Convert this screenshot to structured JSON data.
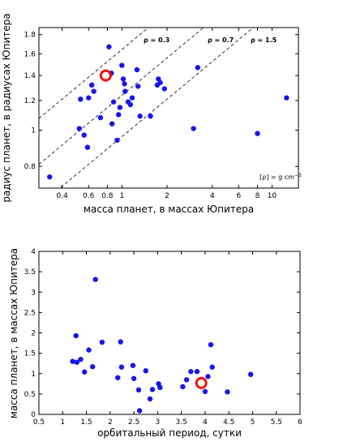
{
  "chart_data": [
    {
      "type": "scatter",
      "xscale": "log",
      "yscale": "log",
      "xlabel": "масса планет, в массах Юпитера",
      "ylabel": "радиус планет, в радиусах Юпитера",
      "xlim": [
        0.28,
        15
      ],
      "ylim": [
        0.7,
        1.88
      ],
      "xticks": [
        0.4,
        0.6,
        0.8,
        1,
        2,
        4,
        6,
        8,
        10
      ],
      "xtick_labels": [
        "0.4",
        "0.6",
        "0.8",
        "1",
        "2",
        "4",
        "6",
        "8",
        "10"
      ],
      "yticks": [
        0.8,
        1,
        1.2,
        1.4,
        1.6,
        1.8
      ],
      "ytick_labels": [
        "0.8",
        "1",
        "1.2",
        "1.4",
        "1.6",
        "1.8"
      ],
      "density_lines": [
        {
          "label": "ρ = 0.3",
          "rho": 0.3
        },
        {
          "label": "ρ = 0.7",
          "rho": 0.7
        },
        {
          "label": "ρ = 1.5",
          "rho": 1.5
        }
      ],
      "units_note": "[ρ] = g cm",
      "units_note_exp": "−3",
      "points": [
        {
          "x": 0.33,
          "y": 0.75
        },
        {
          "x": 0.52,
          "y": 1.01
        },
        {
          "x": 0.53,
          "y": 1.21
        },
        {
          "x": 0.56,
          "y": 0.97
        },
        {
          "x": 0.59,
          "y": 0.9
        },
        {
          "x": 0.6,
          "y": 1.22
        },
        {
          "x": 0.63,
          "y": 1.32
        },
        {
          "x": 0.65,
          "y": 1.27
        },
        {
          "x": 0.72,
          "y": 1.08
        },
        {
          "x": 0.82,
          "y": 1.67
        },
        {
          "x": 0.85,
          "y": 1.42
        },
        {
          "x": 0.86,
          "y": 1.04
        },
        {
          "x": 0.88,
          "y": 1.19
        },
        {
          "x": 0.93,
          "y": 0.94
        },
        {
          "x": 0.95,
          "y": 1.1
        },
        {
          "x": 0.97,
          "y": 1.15
        },
        {
          "x": 1.0,
          "y": 1.49
        },
        {
          "x": 1.02,
          "y": 1.37
        },
        {
          "x": 1.04,
          "y": 1.33
        },
        {
          "x": 1.05,
          "y": 1.27
        },
        {
          "x": 1.1,
          "y": 1.19
        },
        {
          "x": 1.14,
          "y": 1.17
        },
        {
          "x": 1.17,
          "y": 1.22
        },
        {
          "x": 1.26,
          "y": 1.45
        },
        {
          "x": 1.28,
          "y": 1.31
        },
        {
          "x": 1.32,
          "y": 1.09
        },
        {
          "x": 1.55,
          "y": 1.09
        },
        {
          "x": 1.72,
          "y": 1.32
        },
        {
          "x": 1.75,
          "y": 1.37
        },
        {
          "x": 1.8,
          "y": 1.34
        },
        {
          "x": 1.92,
          "y": 1.29
        },
        {
          "x": 3.0,
          "y": 1.01
        },
        {
          "x": 3.2,
          "y": 1.47
        },
        {
          "x": 8.0,
          "y": 0.98
        },
        {
          "x": 12.5,
          "y": 1.22
        }
      ],
      "highlight": {
        "x": 0.78,
        "y": 1.4
      }
    },
    {
      "type": "scatter",
      "xlabel": "орбитальный период, сутки",
      "ylabel": "масса планет, в массах Юпитера",
      "xlim": [
        0.5,
        6
      ],
      "ylim": [
        0,
        4
      ],
      "xticks": [
        0.5,
        1,
        1.5,
        2,
        2.5,
        3,
        3.5,
        4,
        4.5,
        5,
        5.5,
        6
      ],
      "xtick_labels": [
        "0.5",
        "1",
        "1.5",
        "2",
        "2.5",
        "3",
        "3.5",
        "4",
        "4.5",
        "5",
        "5.5",
        "6"
      ],
      "yticks": [
        0,
        0.5,
        1,
        1.5,
        2,
        2.5,
        3,
        3.5,
        4
      ],
      "ytick_labels": [
        "0",
        "0.5",
        "1",
        "1.5",
        "2",
        "2.5",
        "3",
        "3.5",
        "4"
      ],
      "points": [
        {
          "x": 1.21,
          "y": 1.3
        },
        {
          "x": 1.28,
          "y": 1.93
        },
        {
          "x": 1.3,
          "y": 1.28
        },
        {
          "x": 1.38,
          "y": 1.35
        },
        {
          "x": 1.46,
          "y": 1.04
        },
        {
          "x": 1.55,
          "y": 1.58
        },
        {
          "x": 1.63,
          "y": 1.17
        },
        {
          "x": 1.69,
          "y": 3.31
        },
        {
          "x": 1.83,
          "y": 1.77
        },
        {
          "x": 2.16,
          "y": 0.9
        },
        {
          "x": 2.22,
          "y": 1.78
        },
        {
          "x": 2.24,
          "y": 1.16
        },
        {
          "x": 2.48,
          "y": 1.2
        },
        {
          "x": 2.5,
          "y": 0.88
        },
        {
          "x": 2.6,
          "y": 0.6
        },
        {
          "x": 2.62,
          "y": 0.09
        },
        {
          "x": 2.75,
          "y": 1.07
        },
        {
          "x": 2.84,
          "y": 0.38
        },
        {
          "x": 2.89,
          "y": 0.61
        },
        {
          "x": 3.02,
          "y": 0.75
        },
        {
          "x": 3.05,
          "y": 0.66
        },
        {
          "x": 3.53,
          "y": 0.68
        },
        {
          "x": 3.61,
          "y": 0.85
        },
        {
          "x": 3.7,
          "y": 1.05
        },
        {
          "x": 3.83,
          "y": 1.05
        },
        {
          "x": 4.0,
          "y": 0.56
        },
        {
          "x": 4.06,
          "y": 0.93
        },
        {
          "x": 4.12,
          "y": 1.71
        },
        {
          "x": 4.15,
          "y": 1.16
        },
        {
          "x": 4.47,
          "y": 0.55
        },
        {
          "x": 4.96,
          "y": 0.98
        }
      ],
      "highlight": {
        "x": 3.92,
        "y": 0.77
      }
    }
  ]
}
